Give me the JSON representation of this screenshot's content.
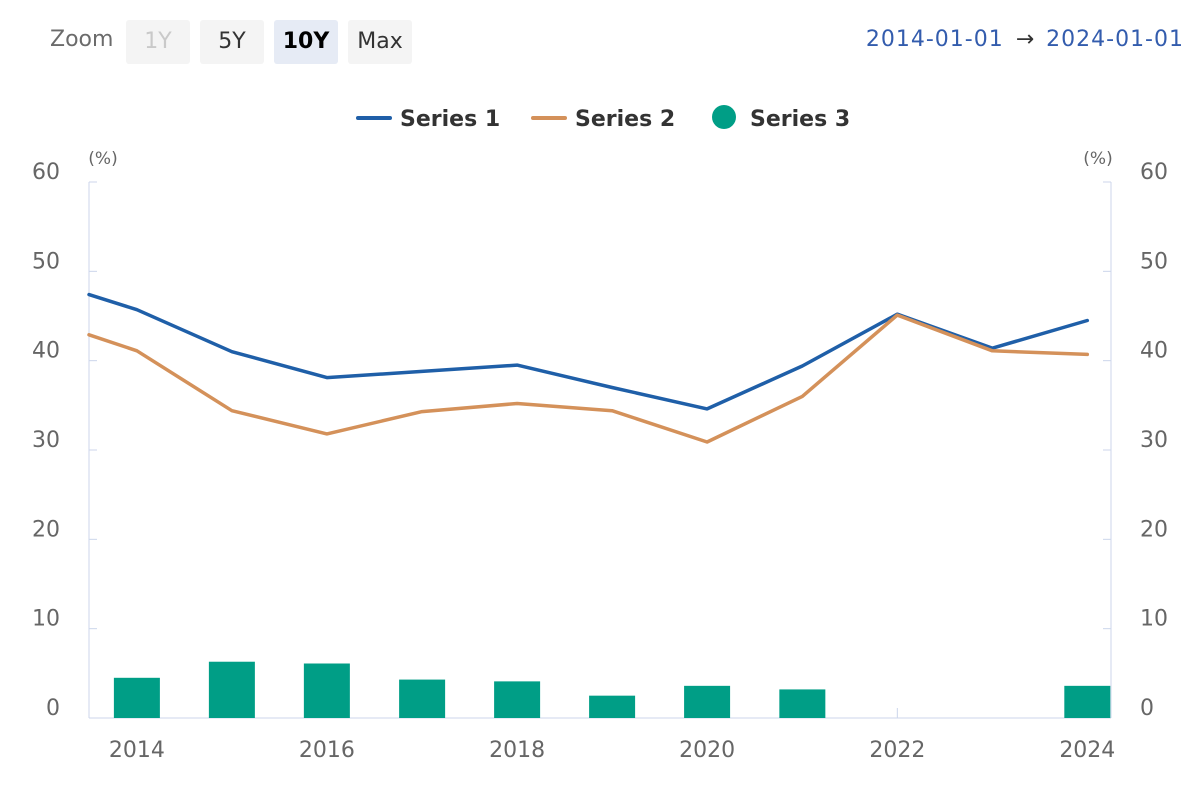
{
  "toolbar": {
    "zoom_label": "Zoom",
    "buttons": [
      {
        "label": "1Y",
        "state": "disabled"
      },
      {
        "label": "5Y",
        "state": "normal"
      },
      {
        "label": "10Y",
        "state": "active"
      },
      {
        "label": "Max",
        "state": "normal"
      }
    ],
    "range_from": "2014-01-01",
    "range_arrow": "→",
    "range_to": "2024-01-01"
  },
  "colors": {
    "series1": "#1f5fa8",
    "series2": "#d4915a",
    "series3": "#009e86",
    "axis": "#ccd6eb",
    "range_text": "#335cad"
  },
  "chart_data": {
    "type": "line",
    "legend_position": "top-center",
    "x_axis": {
      "type": "date",
      "range": [
        "2013-07-01",
        "2024-04-01"
      ],
      "ticks": [
        "2014",
        "2016",
        "2018",
        "2020",
        "2022",
        "2024"
      ]
    },
    "y_axis_left": {
      "range": [
        0,
        60
      ],
      "ticks": [
        "0",
        "10",
        "20",
        "30",
        "40",
        "50",
        "60"
      ],
      "unit": "(%)"
    },
    "y_axis_right": {
      "range": [
        0,
        60
      ],
      "ticks": [
        "0",
        "10",
        "20",
        "30",
        "40",
        "50",
        "60"
      ],
      "unit": "(%)"
    },
    "x": [
      "2014-01-01",
      "2015-01-01",
      "2016-01-01",
      "2017-01-01",
      "2018-01-01",
      "2019-01-01",
      "2020-01-01",
      "2021-01-01",
      "2022-01-01",
      "2023-01-01",
      "2024-01-01"
    ],
    "series": [
      {
        "name": "Series 1",
        "type": "line",
        "values": [
          45.7,
          41.0,
          38.1,
          38.8,
          39.5,
          37.0,
          34.6,
          39.4,
          45.2,
          41.4,
          44.5
        ],
        "start_value": 47.4
      },
      {
        "name": "Series 2",
        "type": "line",
        "values": [
          41.1,
          34.4,
          31.8,
          34.3,
          35.2,
          34.4,
          30.9,
          36.0,
          45.1,
          41.1,
          40.7
        ],
        "start_value": 42.9
      },
      {
        "name": "Series 3",
        "type": "column",
        "values": [
          4.5,
          6.3,
          6.1,
          4.3,
          4.1,
          2.5,
          3.6,
          3.2,
          null,
          null,
          3.6
        ]
      }
    ]
  }
}
